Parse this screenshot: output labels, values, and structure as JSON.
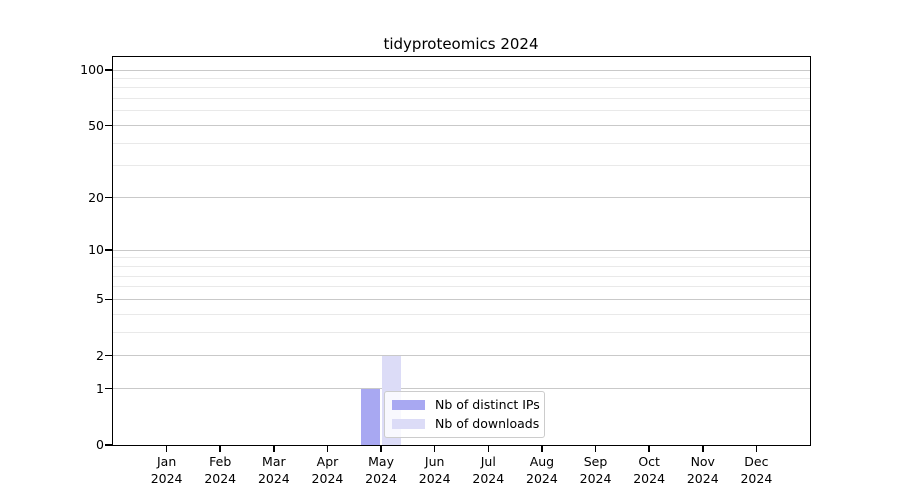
{
  "chart_data": {
    "type": "bar",
    "title": "tidyproteomics 2024",
    "xlabel": "",
    "ylabel": "",
    "categories": [
      "Jan 2024",
      "Feb 2024",
      "Mar 2024",
      "Apr 2024",
      "May 2024",
      "Jun 2024",
      "Jul 2024",
      "Aug 2024",
      "Sep 2024",
      "Oct 2024",
      "Nov 2024",
      "Dec 2024"
    ],
    "series": [
      {
        "key": "distinct-ips",
        "name": "Nb of distinct IPs",
        "color": "#a8a8f2",
        "values": [
          0,
          0,
          0,
          0,
          1,
          0,
          0,
          0,
          0,
          0,
          0,
          0
        ]
      },
      {
        "key": "downloads",
        "name": "Nb of downloads",
        "color": "#dcdcf7",
        "values": [
          0,
          0,
          0,
          0,
          2,
          0,
          0,
          0,
          0,
          0,
          0,
          0
        ]
      }
    ],
    "y_scale": "log10(1+x)",
    "ylim": [
      0,
      100
    ],
    "y_major_ticks": [
      0,
      1,
      2,
      5,
      10,
      20,
      50,
      100
    ],
    "y_minor_gridlines": [
      3,
      4,
      6,
      7,
      8,
      9,
      30,
      40,
      60,
      70,
      80,
      90
    ],
    "grid": true,
    "legend_position": "inside-bottom-center"
  },
  "colors": {
    "axis": "#000000",
    "major_grid": "#c9c9c9",
    "minor_grid": "#e9e9e9",
    "background": "#ffffff"
  }
}
